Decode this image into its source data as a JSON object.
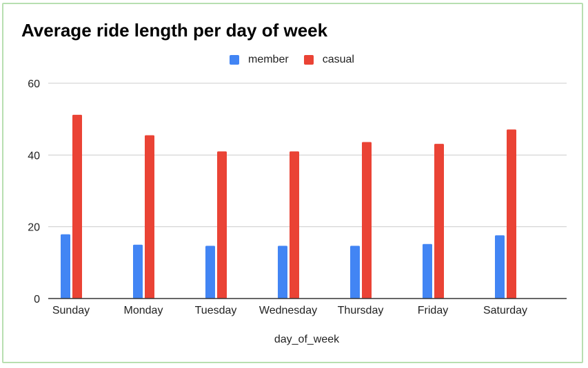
{
  "chart_data": {
    "type": "bar",
    "title": "Average ride length per day of week",
    "xlabel": "day_of_week",
    "ylabel": "",
    "categories": [
      "Sunday",
      "Monday",
      "Tuesday",
      "Wednesday",
      "Thursday",
      "Friday",
      "Saturday"
    ],
    "series": [
      {
        "name": "member",
        "color": "#4285f4",
        "values": [
          17.9,
          15.0,
          14.7,
          14.7,
          14.7,
          15.2,
          17.6
        ]
      },
      {
        "name": "casual",
        "color": "#ea4335",
        "values": [
          51.2,
          45.5,
          41.0,
          41.0,
          43.6,
          43.1,
          47.1
        ]
      }
    ],
    "ylim": [
      0,
      60
    ],
    "yticks": [
      "0",
      "20",
      "40",
      "60"
    ],
    "grid": true,
    "legend_position": "top"
  },
  "frame": {
    "border_color": "#b7dfb0"
  }
}
